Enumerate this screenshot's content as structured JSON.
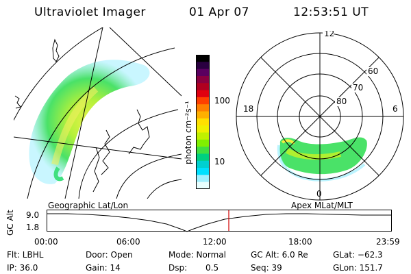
{
  "header": {
    "title": "Ultraviolet Imager",
    "date": "01 Apr 07",
    "time": "12:53:51 UT"
  },
  "colorbar": {
    "label": "photon cm⁻²s⁻¹",
    "ticks": [
      "100",
      "10"
    ],
    "colors": [
      "#000000",
      "#2a0040",
      "#5a0060",
      "#8a0040",
      "#b00020",
      "#e00010",
      "#ff4000",
      "#ff8000",
      "#ffb000",
      "#ffe000",
      "#f0f000",
      "#c0f000",
      "#80f000",
      "#40e040",
      "#00d080",
      "#00d0d0",
      "#00e0ff",
      "#a0f0ff",
      "#e8ffff"
    ]
  },
  "polar": {
    "mlt_labels": {
      "top": "12",
      "left": "18",
      "right": "6",
      "bottom": "0"
    },
    "lat_labels": [
      "60",
      "70",
      "80"
    ]
  },
  "map_labels": {
    "left": "Geographic Lat/Lon",
    "right": "Apex MLat/MLT"
  },
  "altitude_plot": {
    "axis_label": "GC Alt",
    "y_ticks": [
      "9.0",
      "1.8"
    ],
    "x_ticks": [
      "00:00",
      "06:00",
      "12:00",
      "18:00",
      "23:59"
    ],
    "marker_color": "#d00000"
  },
  "status": {
    "flt": "Flt: LBHL",
    "ip": "IP: 36.0",
    "door": "Door: Open",
    "gain": "Gain: 14",
    "mode": "Mode: Normal",
    "dsp_label": "Dsp:",
    "dsp_value": "0.5",
    "gc_alt": "GC Alt: 6.0 Re",
    "seq": "Seq: 39",
    "glat": "GLat: −62.3",
    "glon": "GLon: 151.7"
  }
}
